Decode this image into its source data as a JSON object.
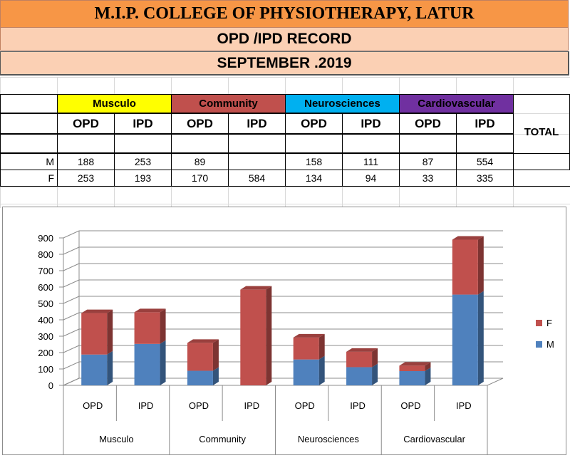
{
  "title": "M.I.P. COLLEGE OF PHYSIOTHERAPY, LATUR",
  "subtitle": "OPD /IPD RECORD",
  "month": "SEPTEMBER .2019",
  "table": {
    "groups": [
      {
        "name": "Musculo",
        "color": "#ffff00"
      },
      {
        "name": "Community",
        "color": "#c0504d"
      },
      {
        "name": "Neurosciences",
        "color": "#00b0f0"
      },
      {
        "name": "Cardiovascular",
        "color": "#7030a0"
      }
    ],
    "total_label": "TOTAL",
    "sub_headers": [
      "OPD",
      "IPD",
      "OPD",
      "IPD",
      "OPD",
      "IPD",
      "OPD",
      "IPD"
    ],
    "rows": [
      {
        "label": "M",
        "values": [
          "188",
          "253",
          "89",
          "",
          "158",
          "111",
          "87",
          "554"
        ]
      },
      {
        "label": "F",
        "values": [
          "253",
          "193",
          "170",
          "584",
          "134",
          "94",
          "33",
          "335"
        ]
      }
    ]
  },
  "chart_data": {
    "type": "bar",
    "stacked": true,
    "three_d": true,
    "categories": [
      "OPD",
      "IPD",
      "OPD",
      "IPD",
      "OPD",
      "IPD",
      "OPD",
      "IPD"
    ],
    "category_groups": [
      "Musculo",
      "Community",
      "Neurosciences",
      "Cardiovascular"
    ],
    "series": [
      {
        "name": "M",
        "color": "#4f81bd",
        "values": [
          188,
          253,
          89,
          0,
          158,
          111,
          87,
          554
        ]
      },
      {
        "name": "F",
        "color": "#c0504d",
        "values": [
          253,
          193,
          170,
          584,
          134,
          94,
          33,
          335
        ]
      }
    ],
    "legend_order": [
      "F",
      "M"
    ],
    "legend_position": "right",
    "ylim": [
      0,
      900
    ],
    "yticks": [
      "0",
      "100",
      "200",
      "300",
      "400",
      "500",
      "600",
      "700",
      "800",
      "900"
    ],
    "grid": true,
    "title": "",
    "xlabel": "",
    "ylabel": ""
  }
}
